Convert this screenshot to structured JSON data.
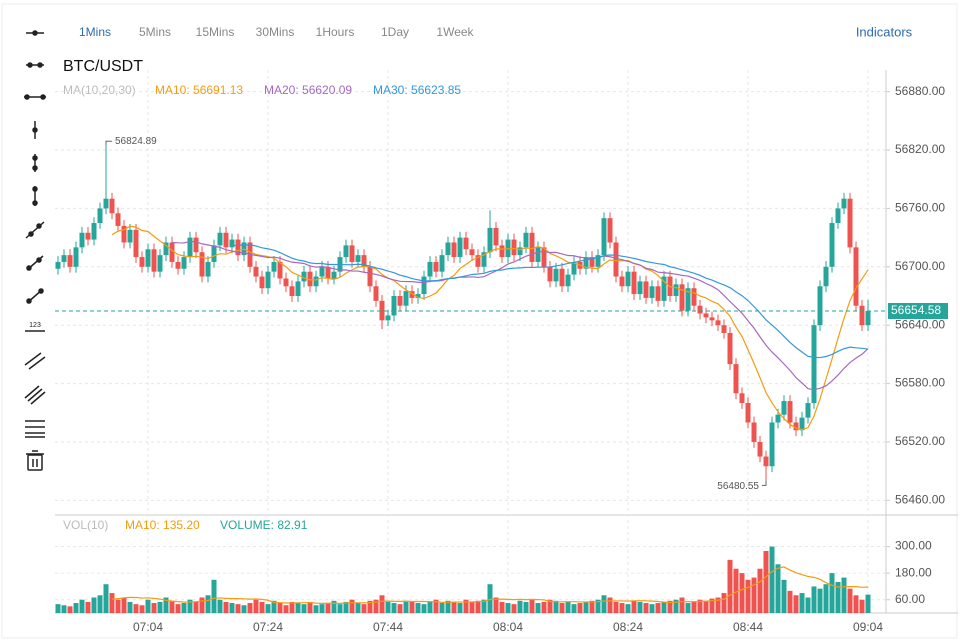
{
  "toolbar": {
    "tabs": [
      "1Mins",
      "5Mins",
      "15Mins",
      "30Mins",
      "1Hours",
      "1Day",
      "1Week"
    ],
    "indicators": "Indicators"
  },
  "chart_data": {
    "type": "candlestick",
    "title": "BTC/USDT",
    "legend": {
      "label": "MA(10,20,30)",
      "items": [
        {
          "text": "MA10: 56691.13",
          "color": "#f39c12",
          "period": 10
        },
        {
          "text": "MA20: 56620.09",
          "color": "#a569bd",
          "period": 20
        },
        {
          "text": "MA30: 56623.85",
          "color": "#3498db",
          "period": 30
        }
      ]
    },
    "volume_legend": {
      "label": "VOL(10)",
      "items": [
        {
          "text": "MA10: 135.20",
          "color": "#f39c12",
          "period": 10
        },
        {
          "text": "VOLUME: 82.91",
          "color": "#26a69a"
        }
      ]
    },
    "up_color": "#26a69a",
    "down_color": "#ef5350",
    "ylim": [
      56448,
      56892
    ],
    "yticks": [
      {
        "value": 56880,
        "label": "56880.00"
      },
      {
        "value": 56820,
        "label": "56820.00"
      },
      {
        "value": 56760,
        "label": "56760.00"
      },
      {
        "value": 56700,
        "label": "56700.00"
      },
      {
        "value": 56640,
        "label": "56640.00"
      },
      {
        "value": 56580,
        "label": "56580.00"
      },
      {
        "value": 56520,
        "label": "56520.00"
      },
      {
        "value": 56460,
        "label": "56460.00"
      }
    ],
    "volume_ylim": [
      0,
      420
    ],
    "volume_ticks": [
      {
        "value": 300,
        "label": "300.00"
      },
      {
        "value": 180,
        "label": "180.00"
      },
      {
        "value": 60,
        "label": "60.00"
      }
    ],
    "categories": [
      null,
      null,
      null,
      null,
      null,
      null,
      null,
      null,
      null,
      null,
      null,
      null,
      null,
      null,
      null,
      "07:04",
      null,
      null,
      null,
      null,
      null,
      null,
      null,
      null,
      null,
      null,
      null,
      null,
      null,
      null,
      null,
      null,
      null,
      null,
      null,
      "07:24",
      null,
      null,
      null,
      null,
      null,
      null,
      null,
      null,
      null,
      null,
      null,
      null,
      null,
      null,
      null,
      null,
      null,
      null,
      null,
      "07:44",
      null,
      null,
      null,
      null,
      null,
      null,
      null,
      null,
      null,
      null,
      null,
      null,
      null,
      null,
      null,
      null,
      null,
      null,
      null,
      "08:04",
      null,
      null,
      null,
      null,
      null,
      null,
      null,
      null,
      null,
      null,
      null,
      null,
      null,
      null,
      null,
      null,
      null,
      null,
      null,
      "08:24",
      null,
      null,
      null,
      null,
      null,
      null,
      null,
      null,
      null,
      null,
      null,
      null,
      null,
      null,
      null,
      null,
      null,
      null,
      null,
      "08:44",
      null,
      null,
      null,
      null,
      null,
      null,
      null,
      null,
      null,
      null,
      null,
      null,
      null,
      null,
      null,
      null,
      null,
      null,
      null,
      "09:04"
    ],
    "candles": [
      [
        56698,
        56711,
        56692,
        56705
      ],
      [
        56705,
        56718,
        56699,
        56712
      ],
      [
        56712,
        56718,
        56694,
        56700
      ],
      [
        56700,
        56726,
        56694,
        56720
      ],
      [
        56720,
        56741,
        56714,
        56735
      ],
      [
        56735,
        56741,
        56722,
        56728
      ],
      [
        56728,
        56751,
        56722,
        56745
      ],
      [
        56745,
        56766,
        56739,
        56760
      ],
      [
        56760,
        56824.89,
        56754,
        56770
      ],
      [
        56770,
        56776,
        56749,
        56755
      ],
      [
        56755,
        56761,
        56736,
        56742
      ],
      [
        56742,
        56748,
        56719,
        56725
      ],
      [
        56725,
        56744,
        56719,
        56738
      ],
      [
        56738,
        56744,
        56704,
        56710
      ],
      [
        56710,
        56716,
        56694,
        56700
      ],
      [
        56700,
        56724,
        56694,
        56718
      ],
      [
        56718,
        56724,
        56689,
        56695
      ],
      [
        56695,
        56718,
        56689,
        56712
      ],
      [
        56712,
        56731,
        56706,
        56725
      ],
      [
        56725,
        56731,
        56699,
        56705
      ],
      [
        56705,
        56711,
        56692,
        56698
      ],
      [
        56698,
        56716,
        56692,
        56710
      ],
      [
        56710,
        56736,
        56704,
        56730
      ],
      [
        56730,
        56736,
        56709,
        56715
      ],
      [
        56715,
        56721,
        56684,
        56690
      ],
      [
        56690,
        56711,
        56684,
        56705
      ],
      [
        56705,
        56728,
        56699,
        56722
      ],
      [
        56722,
        56741,
        56716,
        56735
      ],
      [
        56735,
        56741,
        56714,
        56720
      ],
      [
        56720,
        56734,
        56714,
        56728
      ],
      [
        56728,
        56734,
        56706,
        56712
      ],
      [
        56712,
        56731,
        56706,
        56725
      ],
      [
        56725,
        56731,
        56694,
        56700
      ],
      [
        56700,
        56706,
        56684,
        56690
      ],
      [
        56690,
        56696,
        56672,
        56678
      ],
      [
        56678,
        56701,
        56672,
        56695
      ],
      [
        56695,
        56711,
        56689,
        56705
      ],
      [
        56705,
        56711,
        56682,
        56688
      ],
      [
        56688,
        56694,
        56674,
        56680
      ],
      [
        56680,
        56686,
        56664,
        56670
      ],
      [
        56670,
        56691,
        56664,
        56685
      ],
      [
        56685,
        56701,
        56679,
        56695
      ],
      [
        56695,
        56701,
        56674,
        56680
      ],
      [
        56680,
        56696,
        56674,
        56690
      ],
      [
        56690,
        56706,
        56684,
        56700
      ],
      [
        56700,
        56706,
        56682,
        56688
      ],
      [
        56688,
        56701,
        56682,
        56695
      ],
      [
        56695,
        56716,
        56689,
        56710
      ],
      [
        56710,
        56728,
        56704,
        56722
      ],
      [
        56722,
        56728,
        56699,
        56705
      ],
      [
        56705,
        56718,
        56699,
        56712
      ],
      [
        56712,
        56718,
        56694,
        56700
      ],
      [
        56700,
        56706,
        56674,
        56680
      ],
      [
        56680,
        56686,
        56659,
        56665
      ],
      [
        56665,
        56671,
        56636,
        56645
      ],
      [
        56645,
        56656,
        56639,
        56650
      ],
      [
        56650,
        56676,
        56644,
        56670
      ],
      [
        56670,
        56676,
        56654,
        56660
      ],
      [
        56660,
        56681,
        56654,
        56675
      ],
      [
        56675,
        56681,
        56662,
        56668
      ],
      [
        56668,
        56678,
        56662,
        56672
      ],
      [
        56672,
        56696,
        56666,
        56690
      ],
      [
        56690,
        56711,
        56684,
        56705
      ],
      [
        56705,
        56711,
        56689,
        56695
      ],
      [
        56695,
        56718,
        56689,
        56712
      ],
      [
        56712,
        56731,
        56706,
        56725
      ],
      [
        56725,
        56731,
        56704,
        56710
      ],
      [
        56710,
        56736,
        56704,
        56730
      ],
      [
        56730,
        56736,
        56712,
        56718
      ],
      [
        56718,
        56724,
        56706,
        56712
      ],
      [
        56712,
        56718,
        56694,
        56700
      ],
      [
        56700,
        56721,
        56694,
        56715
      ],
      [
        56715,
        56758,
        56709,
        56740
      ],
      [
        56740,
        56746,
        56716,
        56722
      ],
      [
        56722,
        56728,
        56704,
        56710
      ],
      [
        56710,
        56734,
        56704,
        56728
      ],
      [
        56728,
        56734,
        56706,
        56712
      ],
      [
        56712,
        56726,
        56706,
        56720
      ],
      [
        56720,
        56741,
        56714,
        56735
      ],
      [
        56735,
        56741,
        56699,
        56705
      ],
      [
        56705,
        56726,
        56699,
        56720
      ],
      [
        56720,
        56726,
        56694,
        56700
      ],
      [
        56700,
        56706,
        56679,
        56685
      ],
      [
        56685,
        56704,
        56679,
        56698
      ],
      [
        56698,
        56704,
        56674,
        56680
      ],
      [
        56680,
        56698,
        56674,
        56692
      ],
      [
        56692,
        56711,
        56686,
        56705
      ],
      [
        56705,
        56711,
        56692,
        56698
      ],
      [
        56698,
        56716,
        56692,
        56710
      ],
      [
        56710,
        56716,
        56694,
        56700
      ],
      [
        56700,
        56718,
        56694,
        56712
      ],
      [
        56712,
        56756,
        56706,
        56750
      ],
      [
        56750,
        56756,
        56719,
        56725
      ],
      [
        56725,
        56731,
        56684,
        56690
      ],
      [
        56690,
        56696,
        56674,
        56680
      ],
      [
        56680,
        56701,
        56674,
        56695
      ],
      [
        56695,
        56701,
        56666,
        56672
      ],
      [
        56672,
        56691,
        56666,
        56685
      ],
      [
        56685,
        56691,
        56662,
        56668
      ],
      [
        56668,
        56686,
        56662,
        56680
      ],
      [
        56680,
        56686,
        56659,
        56665
      ],
      [
        56665,
        56696,
        56659,
        56690
      ],
      [
        56690,
        56696,
        56664,
        56670
      ],
      [
        56670,
        56688,
        56664,
        56682
      ],
      [
        56682,
        56688,
        56649,
        56655
      ],
      [
        56655,
        56684,
        56649,
        56678
      ],
      [
        56678,
        56684,
        56654,
        56660
      ],
      [
        56660,
        56666,
        56646,
        56652
      ],
      [
        56652,
        56658,
        56642,
        56648
      ],
      [
        56648,
        56654,
        56639,
        56645
      ],
      [
        56645,
        56651,
        56634,
        56640
      ],
      [
        56640,
        56646,
        56626,
        56632
      ],
      [
        56632,
        56638,
        56594,
        56600
      ],
      [
        56600,
        56606,
        56564,
        56570
      ],
      [
        56570,
        56576,
        56554,
        56560
      ],
      [
        56560,
        56566,
        56534,
        56540
      ],
      [
        56540,
        56546,
        56514,
        56520
      ],
      [
        56520,
        56526,
        56499,
        56505
      ],
      [
        56505,
        56511,
        56480.55,
        56495
      ],
      [
        56495,
        56546,
        56489,
        56540
      ],
      [
        56540,
        56554,
        56534,
        56548
      ],
      [
        56548,
        56568,
        56542,
        56562
      ],
      [
        56562,
        56568,
        56534,
        56540
      ],
      [
        56540,
        56546,
        56526,
        56532
      ],
      [
        56532,
        56551,
        56526,
        56545
      ],
      [
        56545,
        56566,
        56539,
        56560
      ],
      [
        56560,
        56646,
        56554,
        56640
      ],
      [
        56640,
        56686,
        56634,
        56680
      ],
      [
        56680,
        56706,
        56674,
        56700
      ],
      [
        56700,
        56751,
        56694,
        56745
      ],
      [
        56745,
        56766,
        56739,
        56760
      ],
      [
        56760,
        56776,
        56754,
        56770
      ],
      [
        56770,
        56776,
        56714,
        56720
      ],
      [
        56720,
        56726,
        56654,
        56660
      ],
      [
        56660,
        56666,
        56634,
        56640
      ],
      [
        56640,
        56666,
        56634,
        56654.58
      ]
    ],
    "volume": [
      40,
      35,
      30,
      45,
      60,
      50,
      70,
      80,
      130,
      90,
      60,
      70,
      50,
      40,
      35,
      60,
      45,
      50,
      70,
      55,
      40,
      45,
      60,
      50,
      70,
      80,
      150,
      60,
      50,
      45,
      40,
      35,
      45,
      60,
      50,
      40,
      55,
      45,
      35,
      50,
      45,
      40,
      50,
      35,
      40,
      45,
      55,
      40,
      50,
      60,
      45,
      40,
      55,
      60,
      80,
      50,
      45,
      40,
      55,
      50,
      45,
      40,
      50,
      60,
      45,
      55,
      50,
      45,
      60,
      50,
      55,
      60,
      130,
      70,
      50,
      45,
      40,
      55,
      50,
      60,
      45,
      50,
      60,
      55,
      45,
      50,
      40,
      45,
      50,
      55,
      60,
      80,
      70,
      50,
      45,
      40,
      55,
      50,
      45,
      40,
      45,
      50,
      55,
      60,
      70,
      45,
      50,
      60,
      55,
      65,
      70,
      90,
      240,
      200,
      180,
      150,
      160,
      200,
      280,
      300,
      220,
      150,
      100,
      80,
      90,
      70,
      120,
      110,
      130,
      180,
      140,
      160,
      110,
      80,
      60,
      82.91
    ]
  }
}
